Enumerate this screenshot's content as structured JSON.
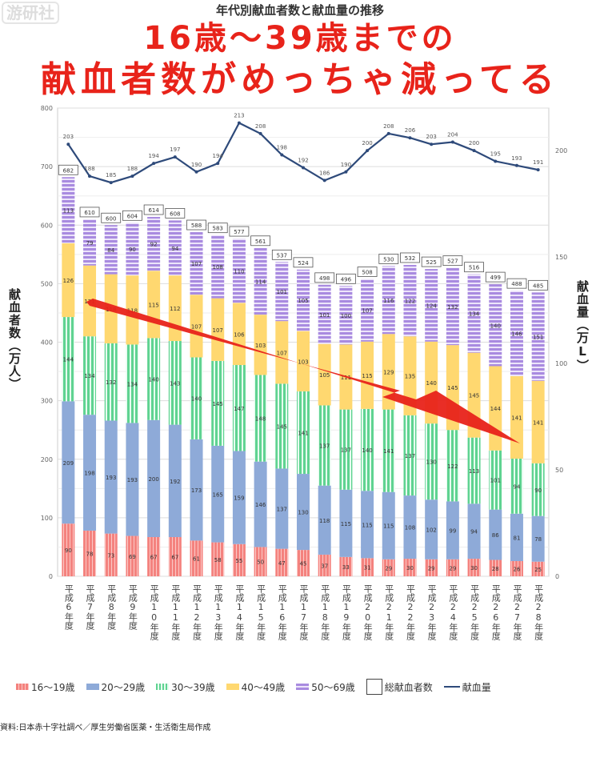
{
  "title": "年代別献血者数と献血量の推移",
  "watermark": "游研社",
  "source": "資料:日本赤十字社調べ／厚生労働省医薬・生活衛生局作成",
  "annotation": {
    "line1": "16歳～39歳までの",
    "line2": "献血者数がめっちゃ減ってる",
    "color": "#e8231a"
  },
  "chart_data": {
    "type": "bar",
    "stacked": true,
    "title": "年代別献血者数と献血量の推移",
    "ylabel": "献血者数（万人）",
    "y2label": "献血量（万L）",
    "ylim": [
      0,
      800
    ],
    "yticks": [
      0,
      100,
      200,
      300,
      400,
      500,
      600,
      700,
      800
    ],
    "y2lim": [
      0,
      220
    ],
    "y2ticks": [
      0,
      50,
      100,
      150,
      200
    ],
    "grid": true,
    "legend_placement": "bottom",
    "categories": [
      "平成6年度",
      "平成7年度",
      "平成8年度",
      "平成9年度",
      "平成10年度",
      "平成11年度",
      "平成12年度",
      "平成13年度",
      "平成14年度",
      "平成15年度",
      "平成16年度",
      "平成17年度",
      "平成18年度",
      "平成19年度",
      "平成20年度",
      "平成21年度",
      "平成22年度",
      "平成23年度",
      "平成24年度",
      "平成25年度",
      "平成26年度",
      "平成27年度",
      "平成28年度"
    ],
    "series": [
      {
        "name": "16～19歳",
        "color": "#f4827e",
        "values": [
          90,
          78,
          73,
          69,
          67,
          67,
          61,
          58,
          55,
          50,
          47,
          45,
          37,
          33,
          31,
          29,
          30,
          29,
          29,
          30,
          28,
          26,
          25
        ]
      },
      {
        "name": "20～29歳",
        "color": "#8eaad8",
        "values": [
          209,
          198,
          193,
          193,
          200,
          192,
          173,
          165,
          159,
          146,
          137,
          130,
          118,
          115,
          115,
          115,
          108,
          102,
          99,
          94,
          86,
          81,
          78
        ]
      },
      {
        "name": "30～39歳",
        "color": "#5fd391",
        "values": [
          144,
          134,
          132,
          134,
          140,
          143,
          140,
          145,
          147,
          148,
          145,
          141,
          137,
          137,
          140,
          141,
          137,
          130,
          122,
          113,
          101,
          94,
          90
        ]
      },
      {
        "name": "40～49歳",
        "color": "#ffd870",
        "values": [
          126,
          121,
          118,
          118,
          115,
          112,
          107,
          107,
          106,
          103,
          107,
          103,
          105,
          111,
          115,
          129,
          135,
          140,
          145,
          145,
          144,
          141,
          141
        ]
      },
      {
        "name": "50～69歳",
        "color": "#a98be0",
        "values": [
          113,
          79,
          84,
          90,
          92,
          94,
          107,
          108,
          110,
          114,
          101,
          105,
          101,
          100,
          107,
          116,
          122,
          124,
          132,
          134,
          140,
          146,
          151
        ]
      }
    ],
    "totals": {
      "name": "総献血者数",
      "values": [
        682,
        610,
        600,
        604,
        614,
        608,
        588,
        583,
        577,
        561,
        537,
        524,
        498,
        496,
        508,
        530,
        532,
        525,
        527,
        516,
        499,
        488,
        485
      ]
    },
    "line": {
      "name": "献血量",
      "axis": "right",
      "color": "#2e4a7a",
      "values": [
        203,
        188,
        185,
        188,
        194,
        197,
        190,
        194,
        213,
        208,
        198,
        192,
        186,
        190,
        200,
        208,
        206,
        203,
        204,
        200,
        195,
        193,
        191
      ]
    }
  }
}
